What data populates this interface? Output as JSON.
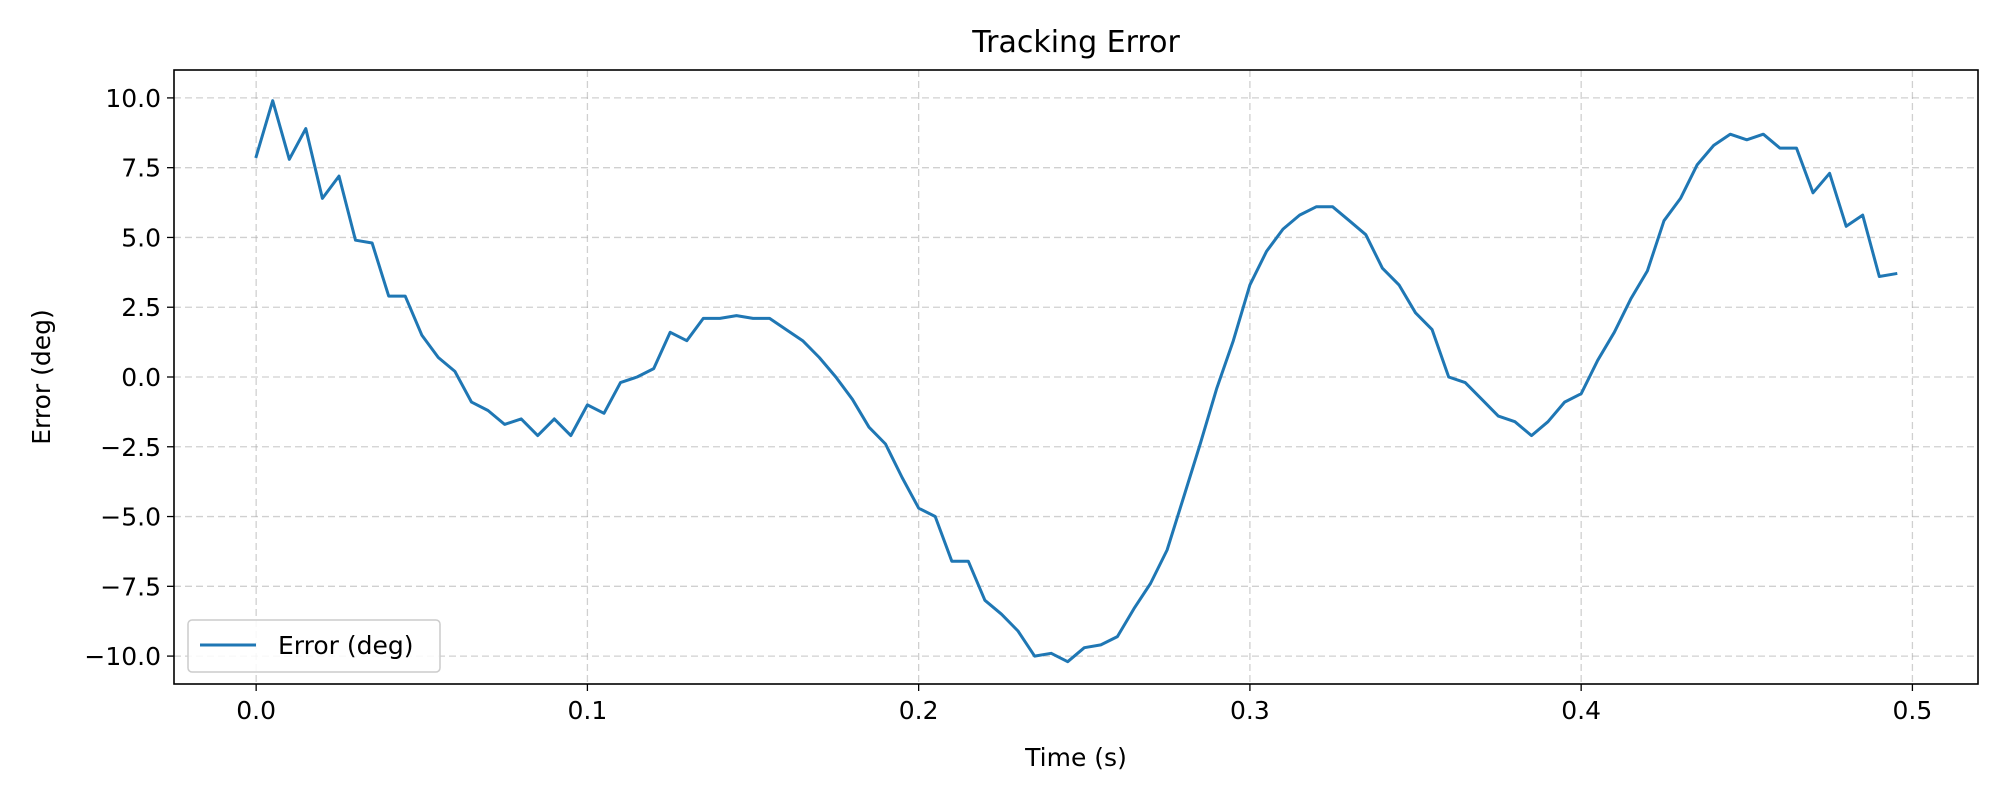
{
  "chart_data": {
    "type": "line",
    "title": "Tracking Error",
    "xlabel": "Time (s)",
    "ylabel": "Error (deg)",
    "xlim": [
      -0.0248,
      0.5198
    ],
    "ylim": [
      -11.0,
      11.0
    ],
    "xticks": [
      0.0,
      0.1,
      0.2,
      0.3,
      0.4,
      0.5
    ],
    "xtick_labels": [
      "0.0",
      "0.1",
      "0.2",
      "0.3",
      "0.4",
      "0.5"
    ],
    "yticks": [
      10.0,
      7.5,
      5.0,
      2.5,
      0.0,
      -2.5,
      -5.0,
      -7.5,
      -10.0
    ],
    "ytick_labels": [
      "10.0",
      "7.5",
      "5.0",
      "2.5",
      "0.0",
      "−2.5",
      "−5.0",
      "−7.5",
      "−10.0"
    ],
    "grid": true,
    "legend_position": "lower-left",
    "series": [
      {
        "name": "Error (deg)",
        "color": "#1f77b4",
        "x": [
          0.0,
          0.005,
          0.01,
          0.015,
          0.02,
          0.025,
          0.03,
          0.035,
          0.04,
          0.045,
          0.05,
          0.055,
          0.06,
          0.065,
          0.07,
          0.075,
          0.08,
          0.085,
          0.09,
          0.095,
          0.1,
          0.105,
          0.11,
          0.115,
          0.12,
          0.125,
          0.13,
          0.135,
          0.14,
          0.145,
          0.15,
          0.155,
          0.16,
          0.165,
          0.17,
          0.175,
          0.18,
          0.185,
          0.19,
          0.195,
          0.2,
          0.205,
          0.21,
          0.215,
          0.22,
          0.225,
          0.23,
          0.235,
          0.24,
          0.245,
          0.25,
          0.255,
          0.26,
          0.265,
          0.27,
          0.275,
          0.28,
          0.285,
          0.29,
          0.295,
          0.3,
          0.305,
          0.31,
          0.315,
          0.32,
          0.325,
          0.33,
          0.335,
          0.34,
          0.345,
          0.35,
          0.355,
          0.36,
          0.365,
          0.37,
          0.375,
          0.38,
          0.385,
          0.39,
          0.395,
          0.4,
          0.405,
          0.41,
          0.415,
          0.42,
          0.425,
          0.43,
          0.435,
          0.44,
          0.445,
          0.45,
          0.455,
          0.46,
          0.465,
          0.47,
          0.475,
          0.48,
          0.485,
          0.49,
          0.495
        ],
        "y": [
          7.9,
          9.9,
          7.8,
          8.9,
          6.4,
          7.2,
          4.9,
          4.8,
          2.9,
          2.9,
          1.5,
          0.7,
          0.2,
          -0.9,
          -1.2,
          -1.7,
          -1.5,
          -2.1,
          -1.5,
          -2.1,
          -1.0,
          -1.3,
          -0.2,
          0.0,
          0.3,
          1.6,
          1.3,
          2.1,
          2.1,
          2.2,
          2.1,
          2.1,
          1.7,
          1.3,
          0.7,
          0.0,
          -0.8,
          -1.8,
          -2.4,
          -3.6,
          -4.7,
          -5.0,
          -6.6,
          -6.6,
          -8.0,
          -8.5,
          -9.1,
          -10.0,
          -9.9,
          -10.2,
          -9.7,
          -9.6,
          -9.3,
          -8.3,
          -7.4,
          -6.2,
          -4.3,
          -2.4,
          -0.4,
          1.3,
          3.3,
          4.5,
          5.3,
          5.8,
          6.1,
          6.1,
          5.6,
          5.1,
          3.9,
          3.3,
          2.3,
          1.7,
          0.0,
          -0.2,
          -0.8,
          -1.4,
          -1.6,
          -2.1,
          -1.6,
          -0.9,
          -0.6,
          0.6,
          1.6,
          2.8,
          3.8,
          5.6,
          6.4,
          7.6,
          8.3,
          8.7,
          8.5,
          8.7,
          8.2,
          8.2,
          6.6,
          7.3,
          5.4,
          5.8,
          3.6,
          3.7
        ]
      }
    ]
  }
}
